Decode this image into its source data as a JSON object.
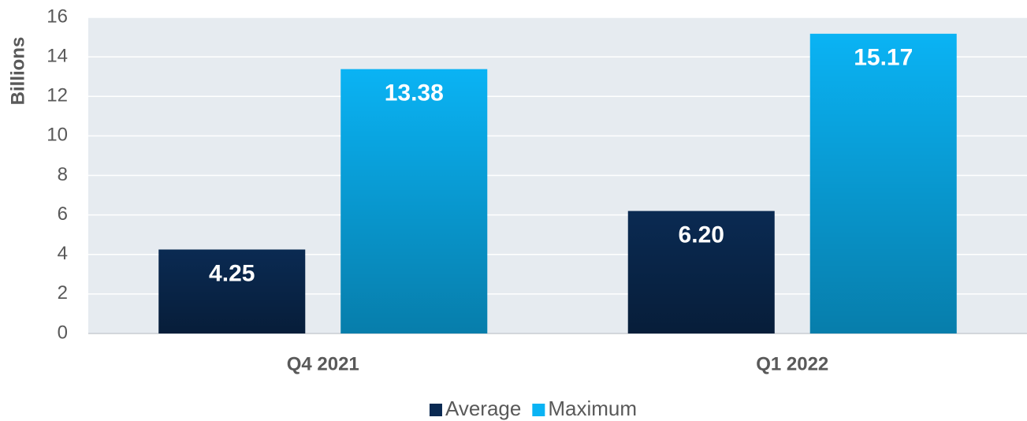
{
  "chart_data": {
    "type": "bar",
    "y_label": "Billions",
    "categories": [
      "Q4 2021",
      "Q1 2022"
    ],
    "series": [
      {
        "name": "Average",
        "color": "#0a2a52",
        "values": [
          4.25,
          6.2
        ],
        "value_labels": [
          "4.25",
          "6.20"
        ]
      },
      {
        "name": "Maximum",
        "color": "#0ab3f4",
        "values": [
          13.38,
          15.17
        ],
        "value_labels": [
          "13.38",
          "15.17"
        ]
      }
    ],
    "ylim": [
      0,
      16
    ],
    "yticks": [
      0,
      2,
      4,
      6,
      8,
      10,
      12,
      14,
      16
    ],
    "grid": true,
    "legend": "bottom"
  }
}
